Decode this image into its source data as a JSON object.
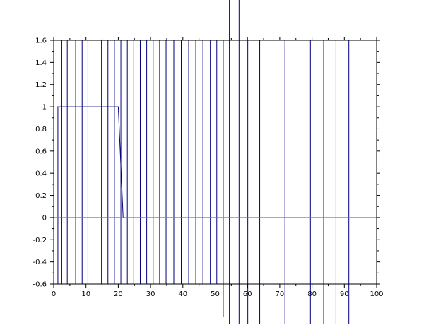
{
  "chart_data": {
    "type": "line",
    "title": "",
    "xlabel": "",
    "ylabel": "",
    "xlim": [
      0,
      100
    ],
    "ylim": [
      -0.6,
      1.6
    ],
    "x_ticks": [
      0,
      10,
      20,
      30,
      40,
      50,
      60,
      70,
      80,
      90,
      100
    ],
    "y_ticks": [
      -0.6,
      -0.4,
      -0.2,
      0,
      0.2,
      0.4,
      0.6,
      0.8,
      1,
      1.2,
      1.4,
      1.6
    ],
    "x_tick_labels": [
      "0",
      "10",
      "20",
      "30",
      "40",
      "50",
      "60",
      "70",
      "80",
      "90",
      "100"
    ],
    "y_tick_labels": [
      "-0.6",
      "-0.4",
      "-0.2",
      "0",
      "0.2",
      "0.4",
      "0.6",
      "0.8",
      "1",
      "1.2",
      "1.4",
      "1.6"
    ],
    "grid": false,
    "colors": {
      "blue": "#00007f",
      "green": "#00cc00",
      "axis": "#000000"
    },
    "series": [
      {
        "x": [
          1,
          20,
          21.5
        ],
        "y": [
          1,
          1,
          0
        ]
      },
      {
        "x": [
          0,
          100
        ],
        "y": [
          0,
          0
        ]
      }
    ],
    "vertical_lines": [
      {
        "x": 1.3,
        "y0": -0.6,
        "y1": 1.0
      },
      {
        "x": 2.5,
        "y0": -0.6,
        "y1": 1.6
      },
      {
        "x": 4.2,
        "y0": -0.6,
        "y1": 1.6
      },
      {
        "x": 6.8,
        "y0": -0.6,
        "y1": 1.6
      },
      {
        "x": 8.8,
        "y0": -0.6,
        "y1": 1.6
      },
      {
        "x": 10.6,
        "y0": -0.6,
        "y1": 1.6
      },
      {
        "x": 12.8,
        "y0": -0.6,
        "y1": 1.6
      },
      {
        "x": 14.8,
        "y0": -0.6,
        "y1": 1.6
      },
      {
        "x": 16.8,
        "y0": -0.6,
        "y1": 1.6
      },
      {
        "x": 18.8,
        "y0": -0.6,
        "y1": 1.6
      },
      {
        "x": 20.8,
        "y0": -0.6,
        "y1": 1.6
      },
      {
        "x": 22.8,
        "y0": -0.6,
        "y1": 1.6
      },
      {
        "x": 24.8,
        "y0": -0.6,
        "y1": 1.6
      },
      {
        "x": 26.8,
        "y0": -0.6,
        "y1": 1.6
      },
      {
        "x": 28.8,
        "y0": -0.6,
        "y1": 1.6
      },
      {
        "x": 30.8,
        "y0": -0.6,
        "y1": 1.6
      },
      {
        "x": 32.8,
        "y0": -0.6,
        "y1": 1.6
      },
      {
        "x": 34.8,
        "y0": -0.6,
        "y1": 1.6
      },
      {
        "x": 37.2,
        "y0": -0.6,
        "y1": 1.6
      },
      {
        "x": 39.5,
        "y0": -0.6,
        "y1": 1.6
      },
      {
        "x": 41.8,
        "y0": -0.6,
        "y1": 1.6
      },
      {
        "x": 44.0,
        "y0": -0.6,
        "y1": 1.6
      },
      {
        "x": 46.2,
        "y0": -0.6,
        "y1": 1.6
      },
      {
        "x": 48.5,
        "y0": -0.6,
        "y1": 1.6
      },
      {
        "x": 50.5,
        "y0": -0.6,
        "y1": 1.6
      },
      {
        "x": 52.5,
        "y0": -0.9,
        "y1": 1.6
      },
      {
        "x": 54.4,
        "y0": -0.96,
        "y1": 2.0
      },
      {
        "x": 57.4,
        "y0": -0.96,
        "y1": 2.0
      },
      {
        "x": 60.1,
        "y0": -0.96,
        "y1": 1.6
      },
      {
        "x": 63.8,
        "y0": -0.96,
        "y1": 1.6
      },
      {
        "x": 71.6,
        "y0": -0.96,
        "y1": 1.6
      },
      {
        "x": 79.5,
        "y0": -0.96,
        "y1": 1.6
      },
      {
        "x": 83.6,
        "y0": -0.96,
        "y1": 1.6
      },
      {
        "x": 87.4,
        "y0": -0.96,
        "y1": 1.6
      },
      {
        "x": 91.4,
        "y0": -0.96,
        "y1": 1.6
      }
    ]
  }
}
